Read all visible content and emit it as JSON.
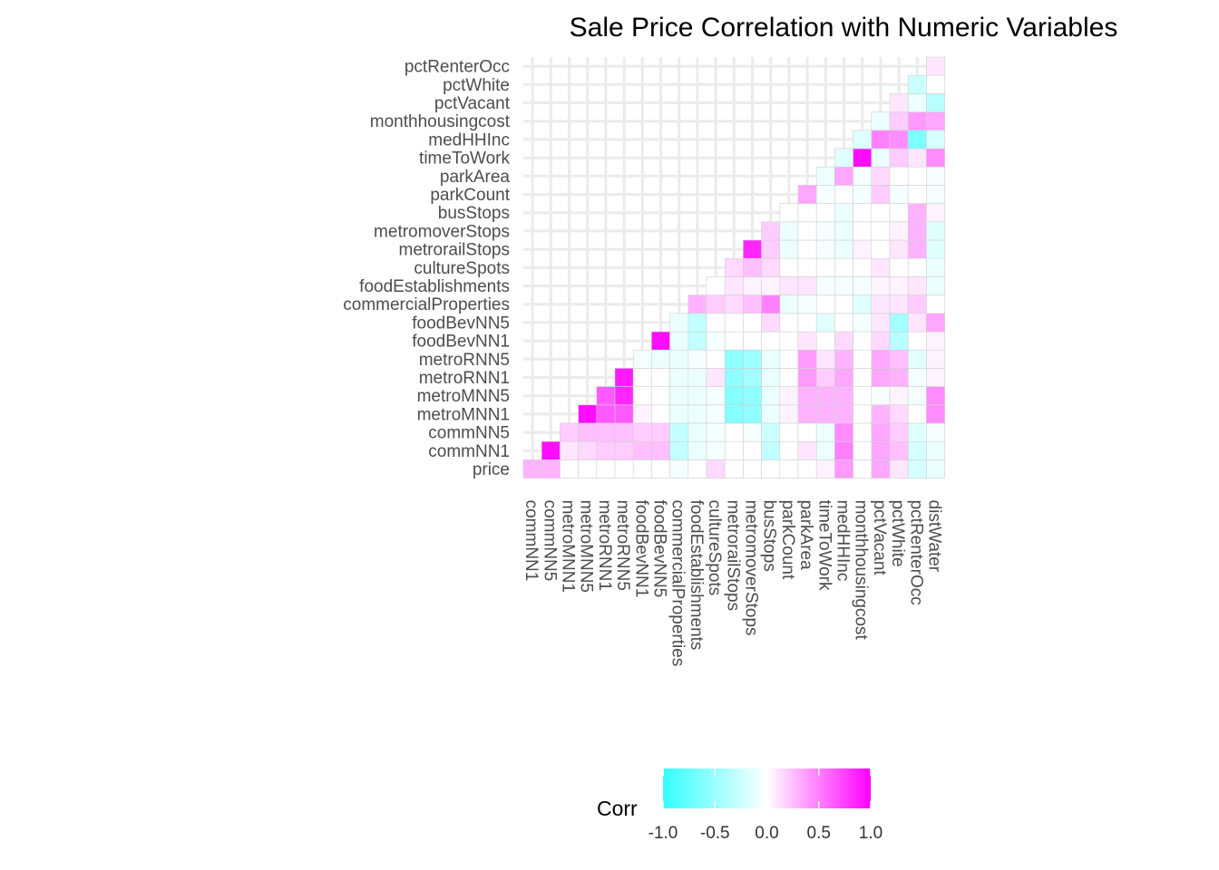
{
  "chart_data": {
    "type": "heatmap",
    "title": "Sale Price Correlation with Numeric Variables",
    "layout": "lower-triangle",
    "x_categories": [
      "commNN1",
      "commNN5",
      "metroMNN1",
      "metroMNN5",
      "metroRNN1",
      "metroRNN5",
      "foodBevNN1",
      "foodBevNN5",
      "commercialProperties",
      "foodEstablishments",
      "cultureSpots",
      "metrorailStops",
      "metromoverStops",
      "busStops",
      "parkCount",
      "parkArea",
      "timeToWork",
      "medHHInc",
      "monthhousingcost",
      "pctVacant",
      "pctWhite",
      "pctRenterOcc",
      "distWater"
    ],
    "y_categories": [
      "price",
      "commNN1",
      "commNN5",
      "metroMNN1",
      "metroMNN5",
      "metroRNN1",
      "metroRNN5",
      "foodBevNN1",
      "foodBevNN5",
      "commercialProperties",
      "foodEstablishments",
      "cultureSpots",
      "metrorailStops",
      "metromoverStops",
      "busStops",
      "parkCount",
      "parkArea",
      "timeToWork",
      "medHHInc",
      "monthhousingcost",
      "pctVacant",
      "pctWhite",
      "pctRenterOcc"
    ],
    "rows": [
      [
        0.3,
        0.3,
        0,
        0,
        0,
        0,
        0,
        0,
        -0.05,
        0,
        0.15,
        0,
        0,
        0,
        0,
        0,
        0.05,
        0.4,
        0,
        0.35,
        0.1,
        -0.2,
        -0.1
      ],
      [
        null,
        0.95,
        0.1,
        0.15,
        0.2,
        0.2,
        0.25,
        0.25,
        -0.3,
        -0.1,
        -0.05,
        0,
        0,
        -0.3,
        0,
        0.1,
        -0.1,
        0.5,
        0,
        0.35,
        0.25,
        -0.2,
        -0.1
      ],
      [
        null,
        null,
        0.2,
        0.25,
        0.25,
        0.25,
        0.2,
        0.2,
        -0.3,
        -0.1,
        -0.05,
        0,
        -0.05,
        -0.25,
        0,
        0,
        -0.1,
        0.45,
        0,
        0.35,
        0.2,
        -0.15,
        -0.05
      ],
      [
        null,
        null,
        null,
        0.95,
        0.65,
        0.65,
        0.05,
        0,
        -0.1,
        -0.1,
        -0.05,
        -0.6,
        -0.55,
        -0.1,
        0.05,
        0.3,
        0.3,
        0.3,
        0,
        0.3,
        0.15,
        0,
        0.45
      ],
      [
        null,
        null,
        null,
        null,
        0.65,
        0.85,
        0,
        0,
        -0.1,
        -0.1,
        -0.05,
        -0.6,
        -0.55,
        -0.1,
        0.05,
        0.3,
        0.3,
        0.3,
        0,
        -0.05,
        0.05,
        -0.05,
        0.45
      ],
      [
        null,
        null,
        null,
        null,
        null,
        0.9,
        0,
        0,
        -0.1,
        -0.1,
        0.1,
        -0.55,
        -0.45,
        -0.1,
        0,
        0.4,
        0.2,
        0.35,
        0,
        0.35,
        0.3,
        -0.05,
        0.05
      ],
      [
        null,
        null,
        null,
        null,
        null,
        null,
        -0.05,
        -0.1,
        -0.1,
        -0.05,
        0,
        -0.55,
        -0.5,
        -0.1,
        0,
        0.4,
        0.1,
        0.3,
        0,
        0.35,
        0.25,
        -0.15,
        0.05
      ],
      [
        null,
        null,
        null,
        null,
        null,
        null,
        null,
        0.95,
        -0.1,
        -0.3,
        -0.05,
        0,
        0,
        0,
        0,
        0.1,
        0,
        0.15,
        0,
        0.15,
        -0.35,
        0,
        0.05
      ],
      [
        null,
        null,
        null,
        null,
        null,
        null,
        null,
        null,
        -0.1,
        -0.3,
        0,
        0,
        0,
        0.15,
        0,
        0,
        -0.15,
        0,
        -0.05,
        0.1,
        -0.45,
        0.1,
        0.35
      ],
      [
        null,
        null,
        null,
        null,
        null,
        null,
        null,
        null,
        null,
        0.3,
        0.2,
        0.15,
        0.25,
        0.5,
        -0.1,
        -0.05,
        0,
        0,
        -0.15,
        0.1,
        0.1,
        0.2,
        0
      ],
      [
        null,
        null,
        null,
        null,
        null,
        null,
        null,
        null,
        null,
        null,
        0,
        0.1,
        0.05,
        0.05,
        0.1,
        0.1,
        -0.05,
        -0.05,
        -0.05,
        0.05,
        0.05,
        0.1,
        -0.1
      ],
      [
        null,
        null,
        null,
        null,
        null,
        null,
        null,
        null,
        null,
        null,
        null,
        0.15,
        0.25,
        0.15,
        0,
        0,
        0,
        0,
        0,
        0.1,
        0,
        0,
        -0.1
      ],
      [
        null,
        null,
        null,
        null,
        null,
        null,
        null,
        null,
        null,
        null,
        null,
        null,
        0.85,
        0.2,
        -0.1,
        0,
        -0.05,
        -0.1,
        0.05,
        0,
        0.1,
        0.3,
        -0.15
      ],
      [
        null,
        null,
        null,
        null,
        null,
        null,
        null,
        null,
        null,
        null,
        null,
        null,
        null,
        0.2,
        -0.1,
        0,
        -0.05,
        -0.1,
        0,
        0,
        0.05,
        0.3,
        -0.15
      ],
      [
        null,
        null,
        null,
        null,
        null,
        null,
        null,
        null,
        null,
        null,
        null,
        null,
        null,
        null,
        0,
        0,
        0,
        -0.1,
        0,
        0,
        0,
        0.3,
        0.05
      ],
      [
        null,
        null,
        null,
        null,
        null,
        null,
        null,
        null,
        null,
        null,
        null,
        null,
        null,
        null,
        null,
        0.35,
        -0.05,
        0,
        -0.05,
        0.2,
        -0.05,
        0,
        -0.05
      ],
      [
        null,
        null,
        null,
        null,
        null,
        null,
        null,
        null,
        null,
        null,
        null,
        null,
        null,
        null,
        null,
        null,
        -0.1,
        0.35,
        -0.05,
        0.15,
        0,
        0,
        -0.05
      ],
      [
        null,
        null,
        null,
        null,
        null,
        null,
        null,
        null,
        null,
        null,
        null,
        null,
        null,
        null,
        null,
        null,
        null,
        -0.15,
        0.95,
        -0.1,
        0.2,
        0.1,
        0.45
      ],
      [
        null,
        null,
        null,
        null,
        null,
        null,
        null,
        null,
        null,
        null,
        null,
        null,
        null,
        null,
        null,
        null,
        null,
        null,
        -0.15,
        0.5,
        0.45,
        -0.65,
        -0.2
      ],
      [
        null,
        null,
        null,
        null,
        null,
        null,
        null,
        null,
        null,
        null,
        null,
        null,
        null,
        null,
        null,
        null,
        null,
        null,
        null,
        -0.1,
        0.2,
        0.4,
        0.35
      ],
      [
        null,
        null,
        null,
        null,
        null,
        null,
        null,
        null,
        null,
        null,
        null,
        null,
        null,
        null,
        null,
        null,
        null,
        null,
        null,
        null,
        0.1,
        -0.1,
        -0.35
      ],
      [
        null,
        null,
        null,
        null,
        null,
        null,
        null,
        null,
        null,
        null,
        null,
        null,
        null,
        null,
        null,
        null,
        null,
        null,
        null,
        null,
        null,
        -0.25,
        0
      ],
      [
        null,
        null,
        null,
        null,
        null,
        null,
        null,
        null,
        null,
        null,
        null,
        null,
        null,
        null,
        null,
        null,
        null,
        null,
        null,
        null,
        null,
        null,
        0.1
      ]
    ],
    "color_scale": {
      "low": "#33FFFF",
      "mid": "#FFFFFF",
      "high": "#FF00FF",
      "limits": [
        -1,
        1
      ]
    },
    "grid": true,
    "legend": {
      "title": "Corr",
      "position": "bottom",
      "ticks": [
        "-1.0",
        "-0.5",
        "0.0",
        "0.5",
        "1.0"
      ]
    }
  }
}
